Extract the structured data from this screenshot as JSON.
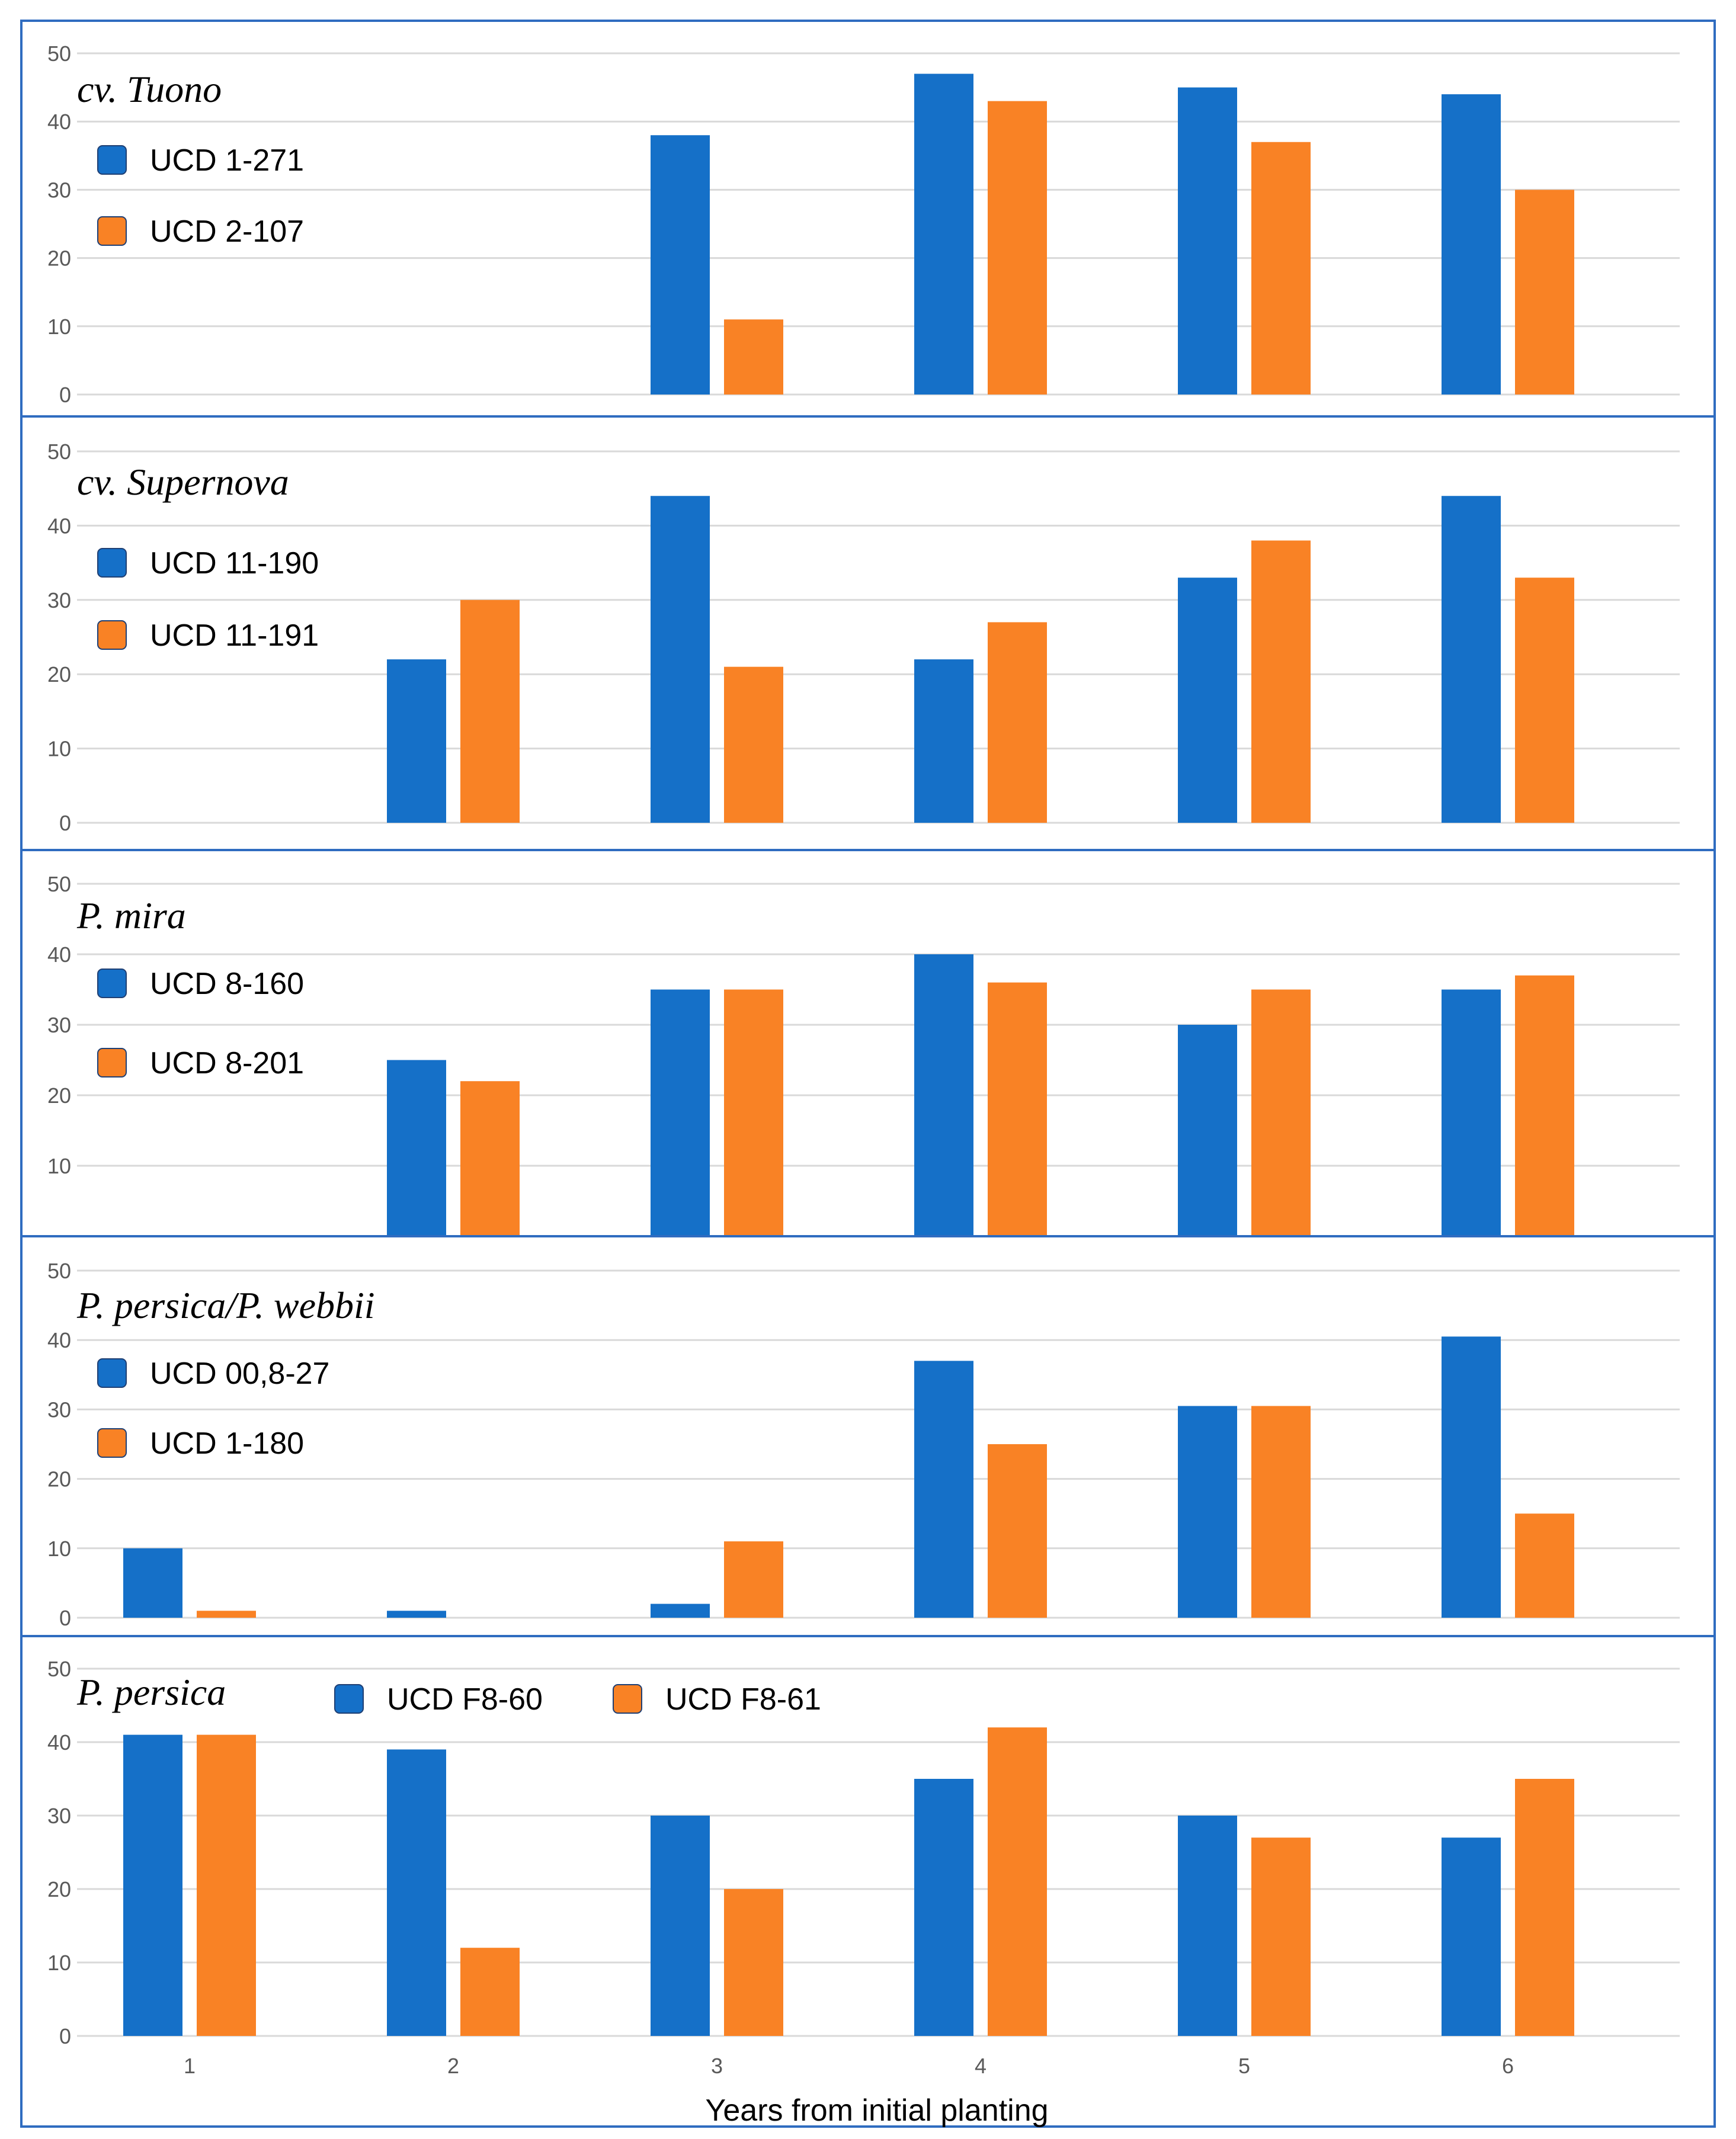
{
  "chart_data": [
    {
      "type": "bar",
      "title": "cv. Tuono",
      "categories": [
        "1",
        "2",
        "3",
        "4",
        "5",
        "6"
      ],
      "ylim": [
        0,
        50
      ],
      "yticks": [
        "0",
        "10",
        "20",
        "30",
        "40",
        "50"
      ],
      "grid": true,
      "legend_position": "top-left",
      "series": [
        {
          "name": "UCD 1-271",
          "color": "#1570c8",
          "values": [
            0,
            0,
            38,
            47,
            45,
            44
          ]
        },
        {
          "name": "UCD 2-107",
          "color": "#f98225",
          "values": [
            0,
            0,
            11,
            43,
            37,
            30
          ]
        }
      ]
    },
    {
      "type": "bar",
      "title": "cv. Supernova",
      "categories": [
        "1",
        "2",
        "3",
        "4",
        "5",
        "6"
      ],
      "ylim": [
        0,
        50
      ],
      "yticks": [
        "0",
        "10",
        "20",
        "30",
        "40",
        "50"
      ],
      "grid": true,
      "legend_position": "top-left",
      "series": [
        {
          "name": "UCD 11-190",
          "color": "#1570c8",
          "values": [
            0,
            22,
            44,
            22,
            33,
            44
          ]
        },
        {
          "name": "UCD 11-191",
          "color": "#f98225",
          "values": [
            0,
            30,
            21,
            27,
            38,
            33
          ]
        }
      ]
    },
    {
      "type": "bar",
      "title": "P. mira",
      "categories": [
        "1",
        "2",
        "3",
        "4",
        "5",
        "6"
      ],
      "ylim": [
        0,
        50
      ],
      "yticks": [
        "10",
        "20",
        "30",
        "40",
        "50"
      ],
      "grid": true,
      "legend_position": "top-left",
      "series": [
        {
          "name": "UCD 8-160",
          "color": "#1570c8",
          "values": [
            0,
            25,
            35,
            40,
            30,
            35
          ]
        },
        {
          "name": "UCD 8-201",
          "color": "#f98225",
          "values": [
            0,
            22,
            35,
            36,
            35,
            37
          ]
        }
      ]
    },
    {
      "type": "bar",
      "title": "P. persica/P. webbii",
      "categories": [
        "1",
        "2",
        "3",
        "4",
        "5",
        "6"
      ],
      "ylim": [
        0,
        50
      ],
      "yticks": [
        "0",
        "10",
        "20",
        "30",
        "40",
        "50"
      ],
      "grid": true,
      "legend_position": "top-left",
      "series": [
        {
          "name": "UCD 00,8-27",
          "color": "#1570c8",
          "values": [
            10,
            1,
            2,
            37,
            30.5,
            40.5
          ]
        },
        {
          "name": "UCD 1-180",
          "color": "#f98225",
          "values": [
            1,
            0,
            11,
            25,
            30.5,
            15
          ]
        }
      ]
    },
    {
      "type": "bar",
      "title": "P. persica",
      "categories": [
        "1",
        "2",
        "3",
        "4",
        "5",
        "6"
      ],
      "xtick_labels": [
        "1",
        "2",
        "3",
        "4",
        "5",
        "6"
      ],
      "xlabel": "Years from initial planting",
      "ylim": [
        0,
        50
      ],
      "yticks": [
        "0",
        "10",
        "20",
        "30",
        "40",
        "50"
      ],
      "grid": true,
      "legend_position": "top",
      "series": [
        {
          "name": "UCD F8-60",
          "color": "#1570c8",
          "values": [
            41,
            39,
            30,
            35,
            30,
            27
          ]
        },
        {
          "name": "UCD F8-61",
          "color": "#f98225",
          "values": [
            41,
            12,
            20,
            42,
            27,
            35
          ]
        }
      ]
    }
  ]
}
